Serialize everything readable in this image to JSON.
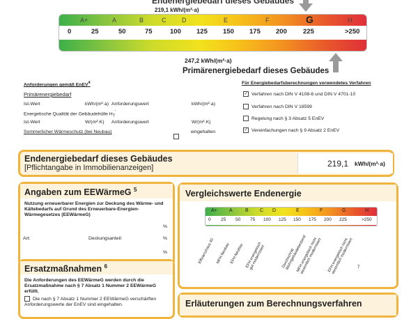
{
  "top": {
    "title": "Endenergiebedarf dieses Gebäudes",
    "value": "219,1  kWh/(m²·a)",
    "classes": [
      "A+",
      "A",
      "B",
      "C",
      "D",
      "E",
      "F",
      "G",
      "H"
    ],
    "ticks": [
      "0",
      "25",
      "50",
      "75",
      "100",
      "125",
      "150",
      "175",
      "200",
      "225",
      ">250"
    ],
    "primary_value": "247,2  kWh/(m²·a)",
    "primary_label": "Primärenergiebedarf dieses Gebäudes"
  },
  "requirements": {
    "heading": "Anforderungen gemäß EnEV",
    "heading_sup": "4",
    "primary": "Primärenergiebedarf",
    "ist1": "Ist-Wert",
    "unit1": "kWh/(m²·a)",
    "anf1": "Anforderungswert",
    "unit1b": "kWh/(m²·a)",
    "quality": "Energetische Qualität der Gebäudehülle H",
    "quality_sub": "T",
    "quality_sup": "'",
    "ist2": "Ist-Wert",
    "unit2": "W/(m²·K)",
    "anf2": "Anforderungswert",
    "unit2b": "W/(m²·K)",
    "summer": "Sommerlicher Wärmeschutz (bei Neubau)",
    "eingehalten": "eingehalten"
  },
  "methods": {
    "heading": "Für Energiebedarfsberechnungen verwendetes Verfahren",
    "items": [
      {
        "label": "Verfahren nach DIN V 4108-6 und DIN V 4701-10",
        "checked": true
      },
      {
        "label": "Verfahren nach DIN V 18599",
        "checked": false
      },
      {
        "label": "Regelung nach § 3 Absatz 5 EnEV",
        "checked": false
      },
      {
        "label": "Vereinfachungen nach § 9 Absatz 2 EnEV",
        "checked": true
      }
    ]
  },
  "endenergie": {
    "title": "Endenergiebedarf dieses Gebäudes",
    "subtitle": "[Pflichtangabe in Immobilienanzeigen]",
    "value": "219,1",
    "unit": "kWh/(m²·a)"
  },
  "eewaermeg": {
    "title": "Angaben zum EEWärmeG",
    "sup": "5",
    "desc": "Nutzung erneuerbarer Energien zur Deckung des Wärme- und Kältebedarfs auf Grund des Erneuerbare-Energien-Wärmegesetzes (EEWärmeG)",
    "art": "Art:",
    "anteil": "Deckungsanteil:",
    "percent": "%"
  },
  "ersatz": {
    "title": "Ersatzmaßnahmen",
    "sup": "6",
    "desc": "Die Anforderungen des EEWärmeG werden durch die Ersatzmaßnahme nach § 7 Absatz 1 Nummer 2 EEWärmeG erfüllt.",
    "item": "Die nach § 7 Absatz 1 Nummer 2 EEWärmeG verschärften Anforderungswerte der EnEV sind eingehalten."
  },
  "vergleich": {
    "title": "Vergleichswerte Endenergie",
    "classes": [
      "A+",
      "A",
      "B",
      "C",
      "D",
      "E",
      "F",
      "G",
      "H"
    ],
    "ticks": [
      "0",
      "25",
      "50",
      "75",
      "100",
      "125",
      "150",
      "175",
      "200",
      "225",
      ">250"
    ],
    "labels": [
      "Effizienzhaus 40",
      "MFH Neubau",
      "EFH Neubau",
      "EFH energetisch gut modernisiert",
      "Durchschnitt Wohngebäudebestand",
      "MFH energetisch nicht wesentlich modernisiert",
      "EFH energetisch nicht wesentlich modernisiert"
    ],
    "footnote": "7"
  },
  "erlaeuterungen": {
    "title": "Erläuterungen zum Berechnungsverfahren"
  },
  "colors": {
    "frame": "#f0b43c",
    "arrow": "#9a9a9a"
  }
}
